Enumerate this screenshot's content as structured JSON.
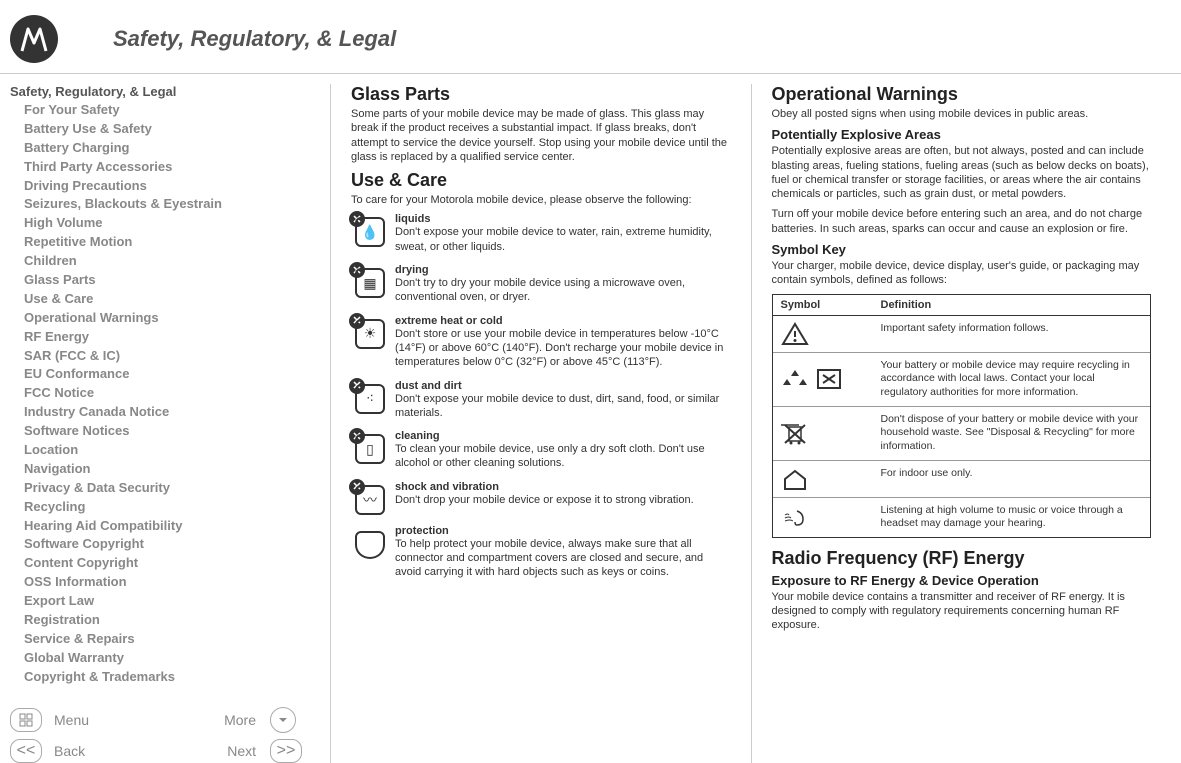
{
  "header": {
    "title": "Safety, Regulatory, & Legal"
  },
  "sidebar": {
    "title": "Safety, Regulatory, & Legal",
    "items": [
      "For Your Safety",
      "Battery Use & Safety",
      "Battery Charging",
      "Third Party Accessories",
      "Driving Precautions",
      "Seizures, Blackouts & Eyestrain",
      "High Volume",
      "Repetitive Motion",
      "Children",
      "Glass Parts",
      "Use & Care",
      "Operational Warnings",
      "RF Energy",
      "SAR (FCC & IC)",
      "EU Conformance",
      "FCC Notice",
      "Industry Canada Notice",
      "Software Notices",
      "Location",
      "Navigation",
      "Privacy & Data Security",
      "Recycling",
      "Hearing Aid Compatibility",
      "Software Copyright",
      "Content Copyright",
      "OSS Information",
      "Export Law",
      "Registration",
      "Service & Repairs",
      "Global Warranty",
      "Copyright & Trademarks"
    ]
  },
  "nav": {
    "menu": "Menu",
    "more": "More",
    "back": "Back",
    "next": "Next"
  },
  "col1": {
    "glass_title": "Glass Parts",
    "glass_body": "Some parts of your mobile device may be made of glass. This glass may break if the product receives a substantial impact. If glass breaks, don't attempt to service the device yourself. Stop using your mobile device until the glass is replaced by a qualified service center.",
    "care_title": "Use & Care",
    "care_intro": "To care for your Motorola mobile device, please observe the following:",
    "care_items": [
      {
        "label": "liquids",
        "desc": "Don't expose your mobile device to water, rain, extreme humidity, sweat, or other liquids."
      },
      {
        "label": "drying",
        "desc": "Don't try to dry your mobile device using a microwave oven, conventional oven, or dryer."
      },
      {
        "label": "extreme heat or cold",
        "desc": "Don't store or use your mobile device in temperatures below -10°C (14°F) or above 60°C (140°F). Don't recharge your mobile device in temperatures below 0°C (32°F) or above 45°C (113°F)."
      },
      {
        "label": "dust and dirt",
        "desc": "Don't expose your mobile device to dust, dirt, sand, food, or similar materials."
      },
      {
        "label": "cleaning",
        "desc": "To clean your mobile device, use only a dry soft cloth. Don't use alcohol or other cleaning solutions."
      },
      {
        "label": "shock and vibration",
        "desc": "Don't drop your mobile device or expose it to strong vibration."
      },
      {
        "label": "protection",
        "desc": "To help protect your mobile device, always make sure that all connector and compartment covers are closed and secure, and avoid carrying it with hard objects such as keys or coins."
      }
    ]
  },
  "col2": {
    "op_title": "Operational Warnings",
    "op_body": "Obey all posted signs when using mobile devices in public areas.",
    "pea_title": "Potentially Explosive Areas",
    "pea_body1": "Potentially explosive areas are often, but not always, posted and can include blasting areas, fueling stations, fueling areas (such as below decks on boats), fuel or chemical transfer or storage facilities, or areas where the air contains chemicals or particles, such as grain dust, or metal powders.",
    "pea_body2": "Turn off your mobile device before entering such an area, and do not charge batteries. In such areas, sparks can occur and cause an explosion or fire.",
    "sym_title": "Symbol Key",
    "sym_intro": "Your charger, mobile device, device display, user's guide, or packaging may contain symbols, defined as follows:",
    "sym_header_symbol": "Symbol",
    "sym_header_def": "Definition",
    "sym_rows": [
      "Important safety information follows.",
      "Your battery or mobile device may require recycling in accordance with local laws. Contact your local regulatory authorities for more information.",
      "Don't dispose of your battery or mobile device with your household waste. See \"Disposal & Recycling\" for more information.",
      "For indoor use only.",
      "Listening at high volume to music or voice through a headset may damage your hearing."
    ],
    "rf_title": "Radio Frequency (RF) Energy",
    "rf_sub": "Exposure to RF Energy & Device Operation",
    "rf_body": "Your mobile device contains a transmitter and receiver of RF energy. It is designed to comply with regulatory requirements concerning human RF exposure."
  }
}
